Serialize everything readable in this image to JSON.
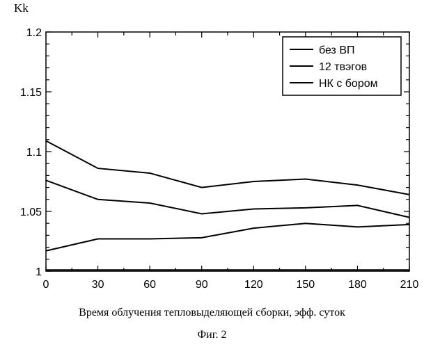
{
  "chart_data": {
    "type": "line",
    "ylabel": "Kk",
    "xlabel": "Время облучения тепловыделяющей сборки, эфф. суток",
    "caption": "Фиг. 2",
    "x": [
      0,
      30,
      60,
      90,
      120,
      150,
      180,
      210
    ],
    "xticks": [
      "0",
      "30",
      "60",
      "90",
      "120",
      "150",
      "180",
      "210"
    ],
    "yticks": [
      "1",
      "1.05",
      "1.1",
      "1.15",
      "1.2"
    ],
    "ylim": [
      1,
      1.2
    ],
    "xlim": [
      0,
      210
    ],
    "legend_position": "top-right",
    "grid": false,
    "series": [
      {
        "name": "без ВП",
        "values": [
          1.109,
          1.086,
          1.082,
          1.07,
          1.075,
          1.077,
          1.072,
          1.064
        ]
      },
      {
        "name": "12 твэгов",
        "values": [
          1.076,
          1.06,
          1.057,
          1.048,
          1.052,
          1.053,
          1.055,
          1.045
        ]
      },
      {
        "name": "НК с бором",
        "values": [
          1.017,
          1.027,
          1.027,
          1.028,
          1.036,
          1.04,
          1.037,
          1.039
        ]
      }
    ],
    "extra_lines": [
      {
        "values": [
          1.001,
          1.001,
          1.001,
          1.001,
          1.001,
          1.001,
          1.001,
          1.001
        ]
      }
    ],
    "line_color": "#000000"
  }
}
